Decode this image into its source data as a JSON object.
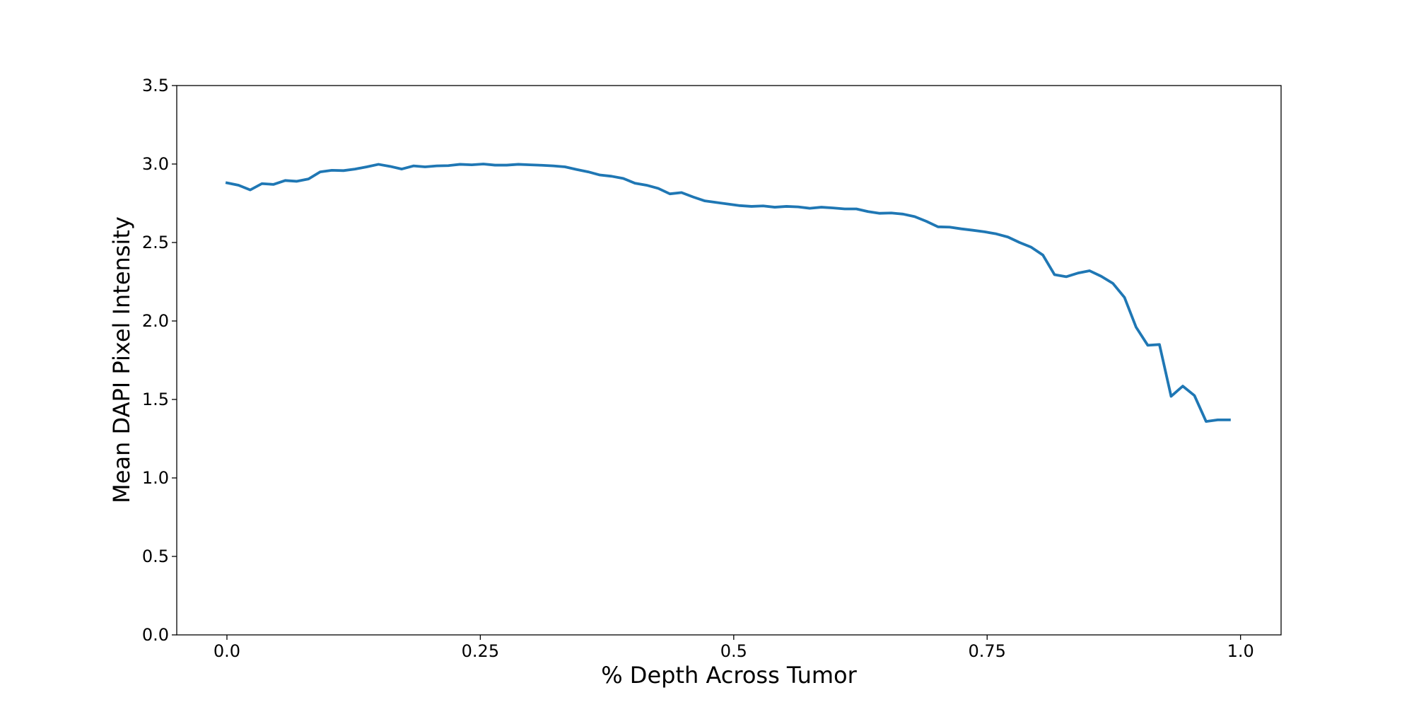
{
  "chart_data": {
    "type": "line",
    "title": "",
    "xlabel": "% Depth Across Tumor",
    "ylabel": "Mean DAPI Pixel Intensity",
    "xlim": [
      -0.0495,
      1.04
    ],
    "ylim": [
      0,
      3.5
    ],
    "x_ticks": [
      0.0,
      0.25,
      0.5,
      0.75,
      1.0
    ],
    "x_tick_labels": [
      "0.0",
      "0.25",
      "0.5",
      "0.75",
      "1.0"
    ],
    "y_ticks": [
      0.0,
      0.5,
      1.0,
      1.5,
      2.0,
      2.5,
      3.0,
      3.5
    ],
    "y_tick_labels": [
      "0.0",
      "0.5",
      "1.0",
      "1.5",
      "2.0",
      "2.5",
      "3.0",
      "3.5"
    ],
    "grid": false,
    "legend": "none",
    "series": [
      {
        "color": "#1f77b4",
        "x": [
          0.0,
          0.0115,
          0.023,
          0.0345,
          0.046,
          0.0575,
          0.069,
          0.0805,
          0.092,
          0.1035,
          0.115,
          0.1265,
          0.138,
          0.1495,
          0.161,
          0.1725,
          0.184,
          0.1955,
          0.207,
          0.2185,
          0.23,
          0.2415,
          0.253,
          0.2645,
          0.276,
          0.2875,
          0.299,
          0.3105,
          0.322,
          0.3335,
          0.345,
          0.3565,
          0.368,
          0.3795,
          0.391,
          0.4025,
          0.414,
          0.4255,
          0.437,
          0.4485,
          0.46,
          0.4715,
          0.483,
          0.4945,
          0.506,
          0.5175,
          0.529,
          0.5405,
          0.552,
          0.5635,
          0.575,
          0.5865,
          0.598,
          0.6095,
          0.621,
          0.6325,
          0.644,
          0.6555,
          0.667,
          0.6785,
          0.69,
          0.7015,
          0.713,
          0.7245,
          0.736,
          0.7475,
          0.759,
          0.7705,
          0.782,
          0.7935,
          0.805,
          0.8165,
          0.828,
          0.8395,
          0.851,
          0.8625,
          0.874,
          0.8855,
          0.897,
          0.9085,
          0.92,
          0.9315,
          0.943,
          0.9545,
          0.966,
          0.9775,
          0.989
        ],
        "y": [
          2.88,
          2.865,
          2.835,
          2.875,
          2.87,
          2.895,
          2.89,
          2.905,
          2.95,
          2.96,
          2.958,
          2.968,
          2.982,
          2.998,
          2.985,
          2.968,
          2.988,
          2.982,
          2.988,
          2.99,
          2.998,
          2.995,
          3.0,
          2.993,
          2.993,
          2.998,
          2.995,
          2.992,
          2.988,
          2.982,
          2.965,
          2.95,
          2.93,
          2.922,
          2.908,
          2.878,
          2.865,
          2.845,
          2.81,
          2.818,
          2.79,
          2.765,
          2.755,
          2.745,
          2.735,
          2.73,
          2.733,
          2.725,
          2.73,
          2.727,
          2.718,
          2.725,
          2.72,
          2.714,
          2.714,
          2.697,
          2.686,
          2.688,
          2.681,
          2.665,
          2.635,
          2.6,
          2.598,
          2.587,
          2.578,
          2.568,
          2.555,
          2.535,
          2.5,
          2.47,
          2.42,
          2.295,
          2.282,
          2.305,
          2.32,
          2.285,
          2.24,
          2.15,
          1.96,
          1.845,
          1.85,
          1.52,
          1.585,
          1.525,
          1.36,
          1.37,
          1.37
        ]
      }
    ]
  }
}
